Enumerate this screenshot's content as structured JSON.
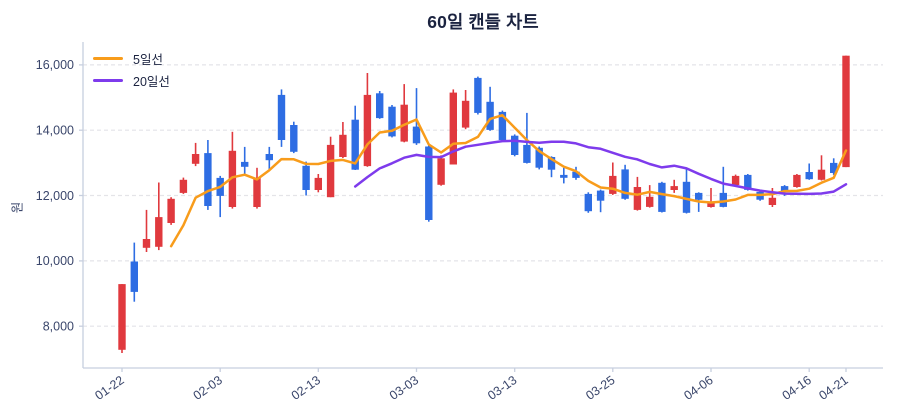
{
  "chart_data": {
    "type": "candlestick",
    "title": "60일 캔들 차트",
    "unit": "원",
    "y_ticks": [
      8000,
      10000,
      12000,
      14000,
      16000
    ],
    "y_tick_labels": [
      "8,000",
      "10,000",
      "12,000",
      "14,000",
      "16,000"
    ],
    "y_range": [
      6720,
      16700
    ],
    "x_ticks": [
      {
        "index": 0,
        "label": "01-22"
      },
      {
        "index": 8,
        "label": "02-03"
      },
      {
        "index": 16,
        "label": "02-13"
      },
      {
        "index": 24,
        "label": "03-03"
      },
      {
        "index": 32,
        "label": "03-13"
      },
      {
        "index": 40,
        "label": "03-25"
      },
      {
        "index": 48,
        "label": "04-06"
      },
      {
        "index": 56,
        "label": "04-16"
      },
      {
        "index": 59,
        "label": "04-21"
      }
    ],
    "candles_format": [
      "open",
      "high",
      "low",
      "close"
    ],
    "candles": [
      [
        7280,
        9290,
        7180,
        9290
      ],
      [
        9980,
        10560,
        8750,
        9050
      ],
      [
        10400,
        11560,
        10270,
        10670
      ],
      [
        10430,
        12400,
        10330,
        11340
      ],
      [
        11160,
        11950,
        11100,
        11900
      ],
      [
        12080,
        12550,
        12050,
        12480
      ],
      [
        12970,
        13610,
        12900,
        13270
      ],
      [
        13300,
        13700,
        11560,
        11680
      ],
      [
        12540,
        12600,
        11340,
        11990
      ],
      [
        11650,
        13950,
        11600,
        13370
      ],
      [
        13030,
        13490,
        12630,
        12880
      ],
      [
        11650,
        12850,
        11600,
        12550
      ],
      [
        13270,
        13490,
        12790,
        13080
      ],
      [
        15080,
        15250,
        13490,
        13700
      ],
      [
        14160,
        14260,
        13300,
        13340
      ],
      [
        12910,
        13040,
        12000,
        12170
      ],
      [
        12170,
        12660,
        12100,
        12540
      ],
      [
        11950,
        13800,
        11950,
        13550
      ],
      [
        13180,
        14250,
        13150,
        13860
      ],
      [
        14320,
        14750,
        12780,
        12790
      ],
      [
        12900,
        15750,
        12880,
        15080
      ],
      [
        15130,
        15200,
        14350,
        14370
      ],
      [
        14720,
        14770,
        13780,
        13810
      ],
      [
        13650,
        15410,
        13630,
        14780
      ],
      [
        14110,
        15290,
        13550,
        13600
      ],
      [
        13500,
        13560,
        11200,
        11250
      ],
      [
        12330,
        13230,
        12300,
        13140
      ],
      [
        12950,
        15250,
        12950,
        15150
      ],
      [
        14080,
        15230,
        14030,
        14900
      ],
      [
        15600,
        15640,
        14480,
        14530
      ],
      [
        14870,
        15330,
        13980,
        14010
      ],
      [
        14560,
        14600,
        13670,
        13700
      ],
      [
        13830,
        13870,
        13200,
        13240
      ],
      [
        13550,
        14530,
        12980,
        13000
      ],
      [
        13460,
        13500,
        12800,
        12850
      ],
      [
        13180,
        13200,
        12560,
        12790
      ],
      [
        12630,
        12850,
        12370,
        12540
      ],
      [
        12730,
        12880,
        12480,
        12540
      ],
      [
        12050,
        12100,
        11470,
        11520
      ],
      [
        12150,
        12180,
        11490,
        11840
      ],
      [
        12050,
        13010,
        12020,
        12600
      ],
      [
        12800,
        12940,
        11870,
        11900
      ],
      [
        11560,
        12570,
        11540,
        12260
      ],
      [
        11650,
        12320,
        11630,
        11960
      ],
      [
        12390,
        12420,
        11480,
        11500
      ],
      [
        12170,
        12480,
        12080,
        12290
      ],
      [
        12420,
        12850,
        11450,
        11470
      ],
      [
        12080,
        12100,
        11500,
        11870
      ],
      [
        11650,
        12230,
        11630,
        11800
      ],
      [
        12080,
        12880,
        11640,
        11650
      ],
      [
        12320,
        12640,
        12300,
        12600
      ],
      [
        12630,
        12660,
        12150,
        12170
      ],
      [
        12110,
        12150,
        11840,
        11870
      ],
      [
        11710,
        12230,
        11650,
        11930
      ],
      [
        12290,
        12320,
        11990,
        12110
      ],
      [
        12260,
        12660,
        12240,
        12630
      ],
      [
        12720,
        12980,
        12480,
        12500
      ],
      [
        12480,
        13230,
        12460,
        12790
      ],
      [
        13000,
        13140,
        12630,
        12690
      ],
      [
        12870,
        16280,
        12870,
        16280
      ]
    ],
    "overlays": [
      {
        "name": "5일선",
        "type": "sma",
        "window": 5,
        "color": "#f89c1b"
      },
      {
        "name": "20일선",
        "type": "sma",
        "window": 20,
        "color": "#7e3bec"
      }
    ],
    "colors": {
      "up": "#e0393e",
      "down": "#2e6de3",
      "grid": "#e4e4e8",
      "axis": "#c7cfdf",
      "tick_text": "#3a466b",
      "title_text": "#1b2340",
      "background": "#ffffff"
    },
    "grid": "horizontal-dashed",
    "legend_position": "top-left"
  }
}
